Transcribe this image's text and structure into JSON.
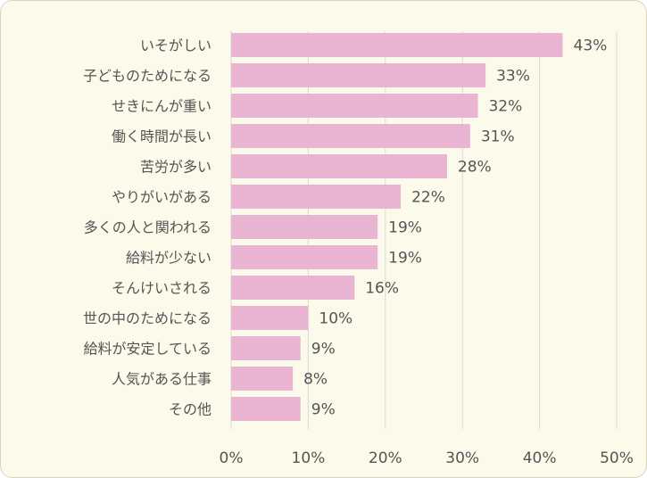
{
  "chart_data": {
    "type": "bar",
    "orientation": "horizontal",
    "categories": [
      "いそがしい",
      "子どものためになる",
      "せきにんが重い",
      "働く時間が長い",
      "苦労が多い",
      "やりがいがある",
      "多くの人と関われる",
      "給料が少ない",
      "そんけいされる",
      "世の中のためになる",
      "給料が安定している",
      "人気がある仕事",
      "その他"
    ],
    "values": [
      43,
      33,
      32,
      31,
      28,
      22,
      19,
      19,
      16,
      10,
      9,
      8,
      9
    ],
    "value_labels": [
      "43%",
      "33%",
      "32%",
      "31%",
      "28%",
      "22%",
      "19%",
      "19%",
      "16%",
      "10%",
      "9%",
      "8%",
      "9%"
    ],
    "value_unit": "%",
    "x_ticks": [
      "0%",
      "10%",
      "20%",
      "30%",
      "40%",
      "50%"
    ],
    "xlim": [
      0,
      50
    ],
    "grid": true,
    "colors": {
      "bar": "#e9b5d2",
      "grid": "#d9d9d9",
      "background": "#fcfaea",
      "text": "#555555"
    }
  }
}
